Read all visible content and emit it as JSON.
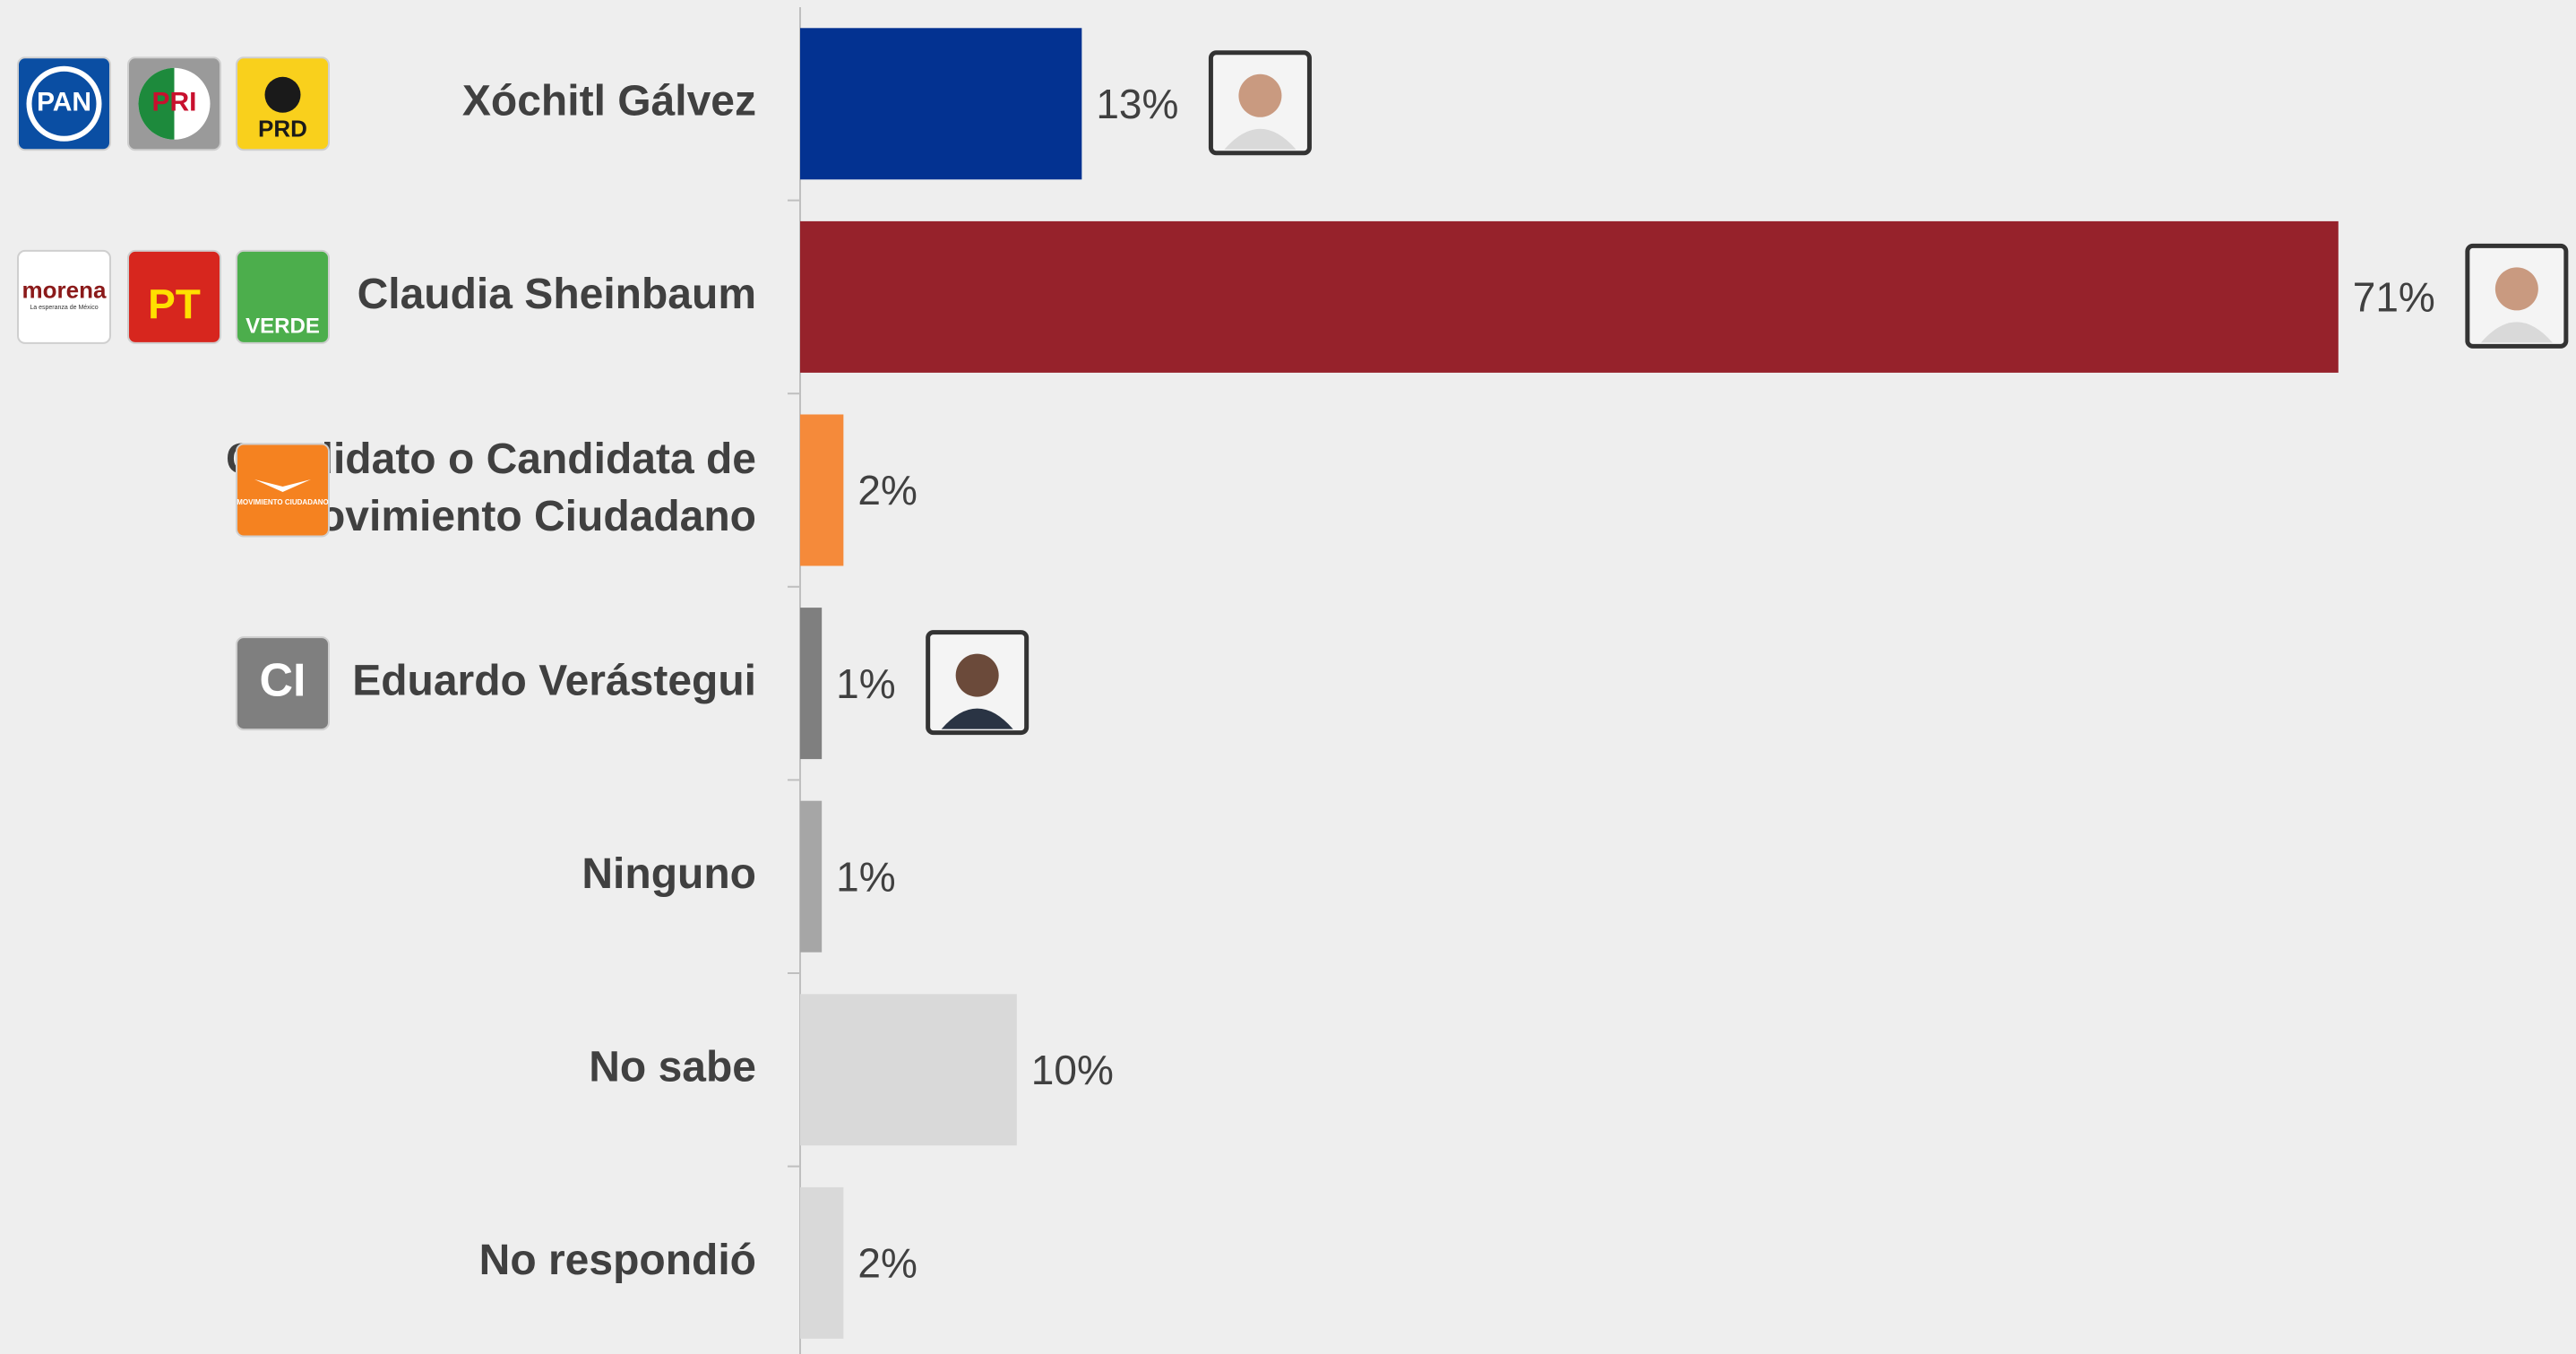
{
  "chart_data": {
    "type": "hbar",
    "categories": [
      "Xóchitl Gálvez",
      "Claudia Sheinbaum",
      "Candidato o Candidata de Movimiento Ciudadano",
      "Eduardo Verástegui",
      "Ninguno",
      "No sabe",
      "No respondió"
    ],
    "values": [
      13,
      71,
      2,
      1,
      1,
      10,
      2
    ],
    "value_labels": [
      "13%",
      "71%",
      "2%",
      "1%",
      "1%",
      "10%",
      "2%"
    ],
    "colors": [
      "#033291",
      "#96222b",
      "#f58a3a",
      "#7f7f7f",
      "#a6a6a6",
      "#d9d9d9",
      "#d9d9d9"
    ],
    "logos": [
      [
        {
          "label": "PAN",
          "color": "#0a4ea3"
        },
        {
          "label": "PRI",
          "color": "#9a9a9a"
        },
        {
          "label": "PRD",
          "color": "#f9d01c"
        }
      ],
      [
        {
          "label": "morena",
          "sub": "La esperanza de México",
          "color": "#ffffff"
        },
        {
          "label": "PT",
          "color": "#d7261e"
        },
        {
          "label": "VERDE",
          "color": "#4cae4c"
        }
      ],
      [
        {
          "label": "MOVIMIENTO CIUDADANO",
          "color": "#f58220"
        }
      ],
      [
        {
          "label": "CI",
          "color": "#7f7f7f"
        }
      ],
      [],
      [],
      []
    ]
  }
}
